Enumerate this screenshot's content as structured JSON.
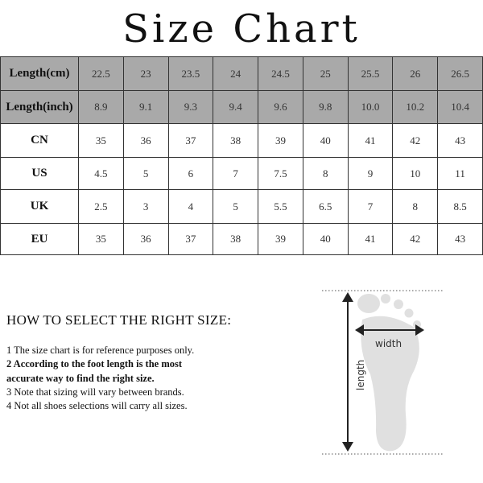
{
  "title": "Size Chart",
  "table": {
    "rows": [
      {
        "label": "Length(cm)",
        "values": [
          "22.5",
          "23",
          "23.5",
          "24",
          "24.5",
          "25",
          "25.5",
          "26",
          "26.5"
        ],
        "shaded": true
      },
      {
        "label": "Length(inch)",
        "values": [
          "8.9",
          "9.1",
          "9.3",
          "9.4",
          "9.6",
          "9.8",
          "10.0",
          "10.2",
          "10.4"
        ],
        "shaded": true
      },
      {
        "label": "CN",
        "values": [
          "35",
          "36",
          "37",
          "38",
          "39",
          "40",
          "41",
          "42",
          "43"
        ]
      },
      {
        "label": "US",
        "values": [
          "4.5",
          "5",
          "6",
          "7",
          "7.5",
          "8",
          "9",
          "10",
          "11"
        ]
      },
      {
        "label": "UK",
        "values": [
          "2.5",
          "3",
          "4",
          "5",
          "5.5",
          "6.5",
          "7",
          "8",
          "8.5"
        ]
      },
      {
        "label": "EU",
        "values": [
          "35",
          "36",
          "37",
          "38",
          "39",
          "40",
          "41",
          "42",
          "43"
        ]
      }
    ]
  },
  "howto": {
    "heading": "HOW TO SELECT THE RIGHT SIZE:",
    "notes": [
      {
        "text": "1 The size chart is for reference purposes only.",
        "bold": false
      },
      {
        "text": "2 According to the foot length is the most",
        "bold": true
      },
      {
        "text": "accurate way to find the right size.",
        "bold": true
      },
      {
        "text": "3 Note that sizing will vary between brands.",
        "bold": false
      },
      {
        "text": "4 Not all shoes selections will carry all sizes.",
        "bold": false
      }
    ]
  },
  "diagram": {
    "width_label": "width",
    "length_label": "length",
    "foot_color": "#e0e0e0"
  },
  "colors": {
    "header_fill": "#a9a9a9",
    "border": "#333333"
  }
}
